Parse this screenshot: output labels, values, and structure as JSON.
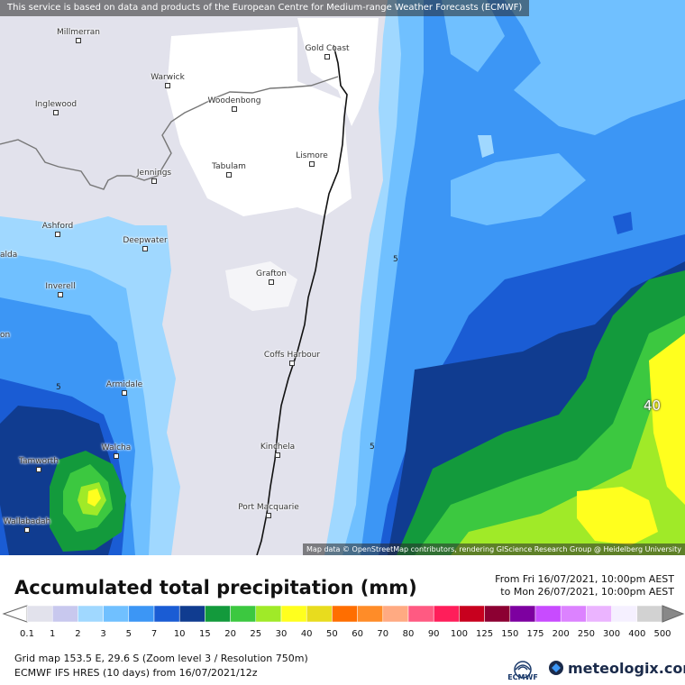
{
  "header": {
    "notice": "This service is based on data and products of the European Centre for Medium-range Weather Forecasts (ECMWF)"
  },
  "map": {
    "attribution": "Map data © OpenStreetMap contributors, rendering GIScience Research Group @ Heidelberg University",
    "cities": [
      {
        "name": "Millmerran"
      },
      {
        "name": "Gold Coast"
      },
      {
        "name": "Warwick"
      },
      {
        "name": "Inglewood"
      },
      {
        "name": "Woodenbong"
      },
      {
        "name": "Lismore"
      },
      {
        "name": "Jennings"
      },
      {
        "name": "Tabulam"
      },
      {
        "name": "Ashford"
      },
      {
        "name": "Deepwater"
      },
      {
        "name": "alda"
      },
      {
        "name": "Grafton"
      },
      {
        "name": "Inverell"
      },
      {
        "name": "on"
      },
      {
        "name": "Coffs Harbour"
      },
      {
        "name": "Armidale"
      },
      {
        "name": "Kinchela"
      },
      {
        "name": "Walcha"
      },
      {
        "name": "Tamworth"
      },
      {
        "name": "Port Macquarie"
      },
      {
        "name": "Wallabadah"
      }
    ],
    "contour_labels": [
      "5",
      "5",
      "5",
      "40"
    ]
  },
  "product": {
    "title": "Accumulated total precipitation (mm)",
    "from": "From Fri 16/07/2021, 10:00pm AEST",
    "to": "to Mon 26/07/2021, 10:00pm AEST"
  },
  "legend": {
    "labels": [
      "0.1",
      "1",
      "2",
      "3",
      "5",
      "7",
      "10",
      "15",
      "20",
      "25",
      "30",
      "40",
      "50",
      "60",
      "70",
      "80",
      "90",
      "100",
      "125",
      "150",
      "175",
      "200",
      "250",
      "300",
      "400",
      "500"
    ],
    "colors": [
      "#e2e2ec",
      "#c8c8ee",
      "#a0d8ff",
      "#70c0ff",
      "#3c96f5",
      "#1a5cd4",
      "#103c90",
      "#139a3c",
      "#3cc840",
      "#a0ea28",
      "#ffff1e",
      "#e8dc1e",
      "#ff6e00",
      "#ff8c28",
      "#ffaa82",
      "#ff5a82",
      "#ff1e5a",
      "#c8001e",
      "#8c0032",
      "#7d00a0",
      "#c84bff",
      "#dc82ff",
      "#ebb4ff",
      "#f5f0ff",
      "#d2d2d2"
    ]
  },
  "info": {
    "grid": "Grid map 153.5 E, 29.6 S (Zoom level 3 / Resolution 750m)",
    "model": "ECMWF IFS HRES (10 days) from 16/07/2021/12z"
  },
  "logos": {
    "ecmwf": "ECMWF",
    "meteologix": "meteologix.com"
  }
}
